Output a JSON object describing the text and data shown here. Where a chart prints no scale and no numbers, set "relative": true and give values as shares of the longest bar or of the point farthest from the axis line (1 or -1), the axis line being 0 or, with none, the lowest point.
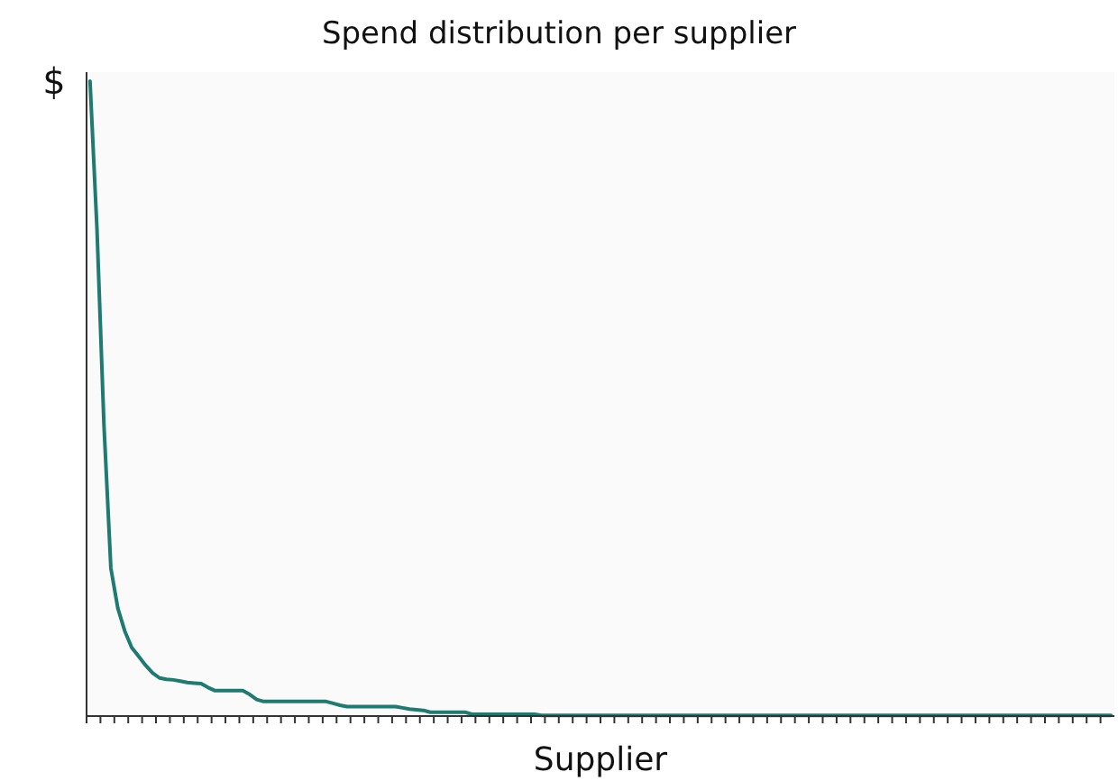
{
  "chart_data": {
    "type": "line",
    "title": "Spend distribution per supplier",
    "xlabel": "Supplier",
    "ylabel": "$",
    "relative": true,
    "color": "#1f7a72",
    "categories": [
      null,
      null,
      null,
      null,
      null,
      null,
      null,
      null,
      null,
      null,
      null,
      null,
      null,
      null,
      null,
      null,
      null,
      null,
      null,
      null,
      null,
      null,
      null,
      null,
      null,
      null,
      null,
      null,
      null,
      null,
      null,
      null,
      null,
      null,
      null,
      null,
      null,
      null,
      null,
      null,
      null,
      null,
      null,
      null,
      null,
      null,
      null,
      null,
      null,
      null,
      null,
      null,
      null,
      null,
      null,
      null,
      null,
      null,
      null,
      null,
      null,
      null,
      null,
      null,
      null,
      null,
      null,
      null,
      null,
      null,
      null,
      null,
      null,
      null,
      null,
      null,
      null,
      null,
      null,
      null,
      null,
      null,
      null,
      null,
      null,
      null,
      null,
      null,
      null,
      null,
      null,
      null,
      null,
      null,
      null,
      null,
      null,
      null,
      null,
      null,
      null,
      null,
      null,
      null,
      null,
      null,
      null,
      null,
      null,
      null,
      null,
      null,
      null,
      null,
      null,
      null,
      null,
      null,
      null,
      null,
      null,
      null,
      null,
      null,
      null,
      null,
      null,
      null,
      null,
      null,
      null,
      null,
      null,
      null,
      null,
      null,
      null,
      null,
      null,
      null,
      null,
      null,
      null,
      null,
      null,
      null,
      null,
      null
    ],
    "values": [
      1.0,
      0.767,
      0.46,
      0.233,
      0.17,
      0.134,
      0.108,
      0.094,
      0.08,
      0.068,
      0.06,
      0.058,
      0.057,
      0.055,
      0.053,
      0.052,
      0.051,
      0.045,
      0.04,
      0.04,
      0.04,
      0.04,
      0.04,
      0.034,
      0.026,
      0.023,
      0.023,
      0.023,
      0.023,
      0.023,
      0.023,
      0.023,
      0.023,
      0.023,
      0.023,
      0.02,
      0.017,
      0.015,
      0.015,
      0.015,
      0.015,
      0.015,
      0.015,
      0.015,
      0.015,
      0.013,
      0.011,
      0.01,
      0.009,
      0.006,
      0.006,
      0.006,
      0.006,
      0.006,
      0.006,
      0.003,
      0.003,
      0.003,
      0.003,
      0.003,
      0.003,
      0.003,
      0.003,
      0.003,
      0.003,
      0.001,
      0.001,
      0.001,
      0.001,
      0.001,
      0.001,
      0.001,
      0.001,
      0.001,
      0.001,
      0.001,
      0.001,
      0.001,
      0.001,
      0.001,
      0.001,
      0.001,
      0.001,
      0.001,
      0.001,
      0.001,
      0.001,
      0.001,
      0.001,
      0.001,
      0.001,
      0.001,
      0.001,
      0.001,
      0.001,
      0.001,
      0.001,
      0.001,
      0.001,
      0.001,
      0.001,
      0.001,
      0.001,
      0.001,
      0.001,
      0.001,
      0.001,
      0.001,
      0.001,
      0.001,
      0.001,
      0.001,
      0.001,
      0.001,
      0.001,
      0.001,
      0.001,
      0.001,
      0.001,
      0.001,
      0.001,
      0.001,
      0.001,
      0.001,
      0.001,
      0.001,
      0.001,
      0.001,
      0.001,
      0.001,
      0.001,
      0.001,
      0.001,
      0.001,
      0.001,
      0.001,
      0.001,
      0.001,
      0.001,
      0.001,
      0.001,
      0.001,
      0.001,
      0.001,
      0.001,
      0.001,
      0.001,
      0.001
    ]
  }
}
